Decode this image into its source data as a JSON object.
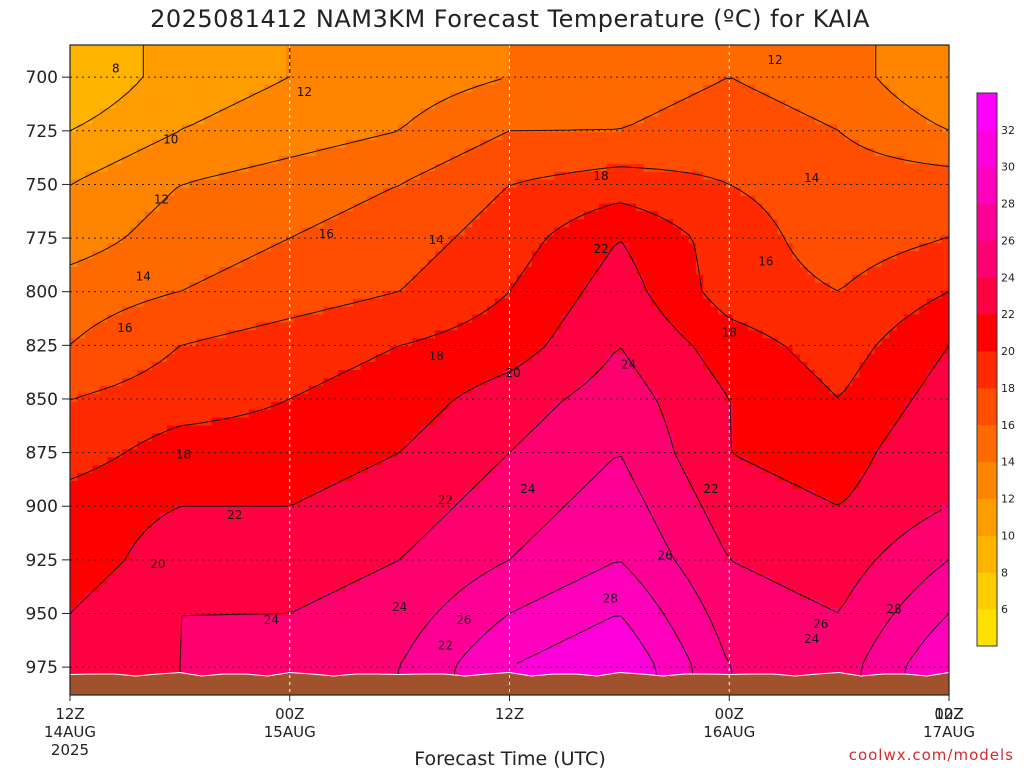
{
  "chart_data": {
    "type": "heatmap",
    "title": "2025081412 NAM3KM Forecast Temperature (ºC) for KAIA",
    "xlabel": "Forecast Time (UTC)",
    "ylabel": "",
    "x_hours": [
      0,
      6,
      12,
      18,
      24,
      30,
      36,
      42,
      48
    ],
    "y_levels": [
      700,
      725,
      750,
      775,
      800,
      825,
      850,
      875,
      900,
      925,
      950,
      975
    ],
    "ylim": [
      988,
      685
    ],
    "xlim": [
      0,
      48
    ],
    "y_ticks": [
      "700",
      "725",
      "750",
      "775",
      "800",
      "825",
      "850",
      "875",
      "900",
      "925",
      "950",
      "975"
    ],
    "x_ticks": [
      {
        "line1": "12Z",
        "line2": "14AUG",
        "line3": "2025"
      },
      {
        "line1": "00Z",
        "line2": "15AUG",
        "line3": ""
      },
      {
        "line1": "12Z",
        "line2": "",
        "line3": ""
      },
      {
        "line1": "00Z",
        "line2": "16AUG",
        "line3": ""
      },
      {
        "line1": "12Z",
        "line2": "",
        "line3": ""
      },
      {
        "line1": "00Z",
        "line2": "17AUG",
        "line3": ""
      }
    ],
    "x_tick_hours": [
      0,
      12,
      24,
      36,
      48,
      60
    ],
    "temperature_grid": [
      [
        8,
        11,
        12,
        13,
        14,
        15,
        16,
        15,
        12
      ],
      [
        10,
        12,
        13,
        14,
        16,
        16,
        17,
        16,
        14
      ],
      [
        12,
        14,
        15,
        16,
        18,
        19,
        18,
        17,
        17
      ],
      [
        13,
        15,
        16,
        17,
        19,
        22,
        19,
        17,
        18
      ],
      [
        15,
        16,
        17,
        18,
        20,
        23,
        19,
        18,
        20
      ],
      [
        16,
        18,
        19,
        20,
        21,
        24,
        21,
        19,
        22
      ],
      [
        18,
        19,
        20,
        21,
        23,
        25,
        22,
        20,
        23
      ],
      [
        19,
        21,
        21,
        22,
        24,
        26,
        22,
        21,
        24
      ],
      [
        21,
        22,
        22,
        23,
        25,
        27,
        23,
        22,
        24
      ],
      [
        21,
        23,
        23,
        24,
        26,
        28,
        24,
        23,
        26
      ],
      [
        22,
        24,
        24,
        25,
        28,
        30,
        25,
        24,
        28
      ],
      [
        23,
        24,
        25,
        26,
        30,
        32,
        26,
        25,
        30
      ]
    ],
    "contour_interval": 2,
    "contour_labels": [
      {
        "value": "8",
        "hour": 2.5,
        "level": 696
      },
      {
        "value": "12",
        "hour": 12.8,
        "level": 707
      },
      {
        "value": "12",
        "hour": 38.5,
        "level": 692
      },
      {
        "value": "10",
        "hour": 5.5,
        "level": 729
      },
      {
        "value": "14",
        "hour": 40.5,
        "level": 747
      },
      {
        "value": "12",
        "hour": 5.0,
        "level": 757
      },
      {
        "value": "16",
        "hour": 14.0,
        "level": 773
      },
      {
        "value": "14",
        "hour": 20.0,
        "level": 776
      },
      {
        "value": "18",
        "hour": 29.0,
        "level": 746
      },
      {
        "value": "16",
        "hour": 38.0,
        "level": 786
      },
      {
        "value": "14",
        "hour": 4.0,
        "level": 793
      },
      {
        "value": "22",
        "hour": 29.0,
        "level": 780
      },
      {
        "value": "16",
        "hour": 3.0,
        "level": 817
      },
      {
        "value": "18",
        "hour": 20.0,
        "level": 830
      },
      {
        "value": "18",
        "hour": 36.0,
        "level": 819
      },
      {
        "value": "20",
        "hour": 24.2,
        "level": 838
      },
      {
        "value": "24",
        "hour": 30.5,
        "level": 834
      },
      {
        "value": "18",
        "hour": 6.2,
        "level": 876
      },
      {
        "value": "24",
        "hour": 25.0,
        "level": 892
      },
      {
        "value": "22",
        "hour": 35.0,
        "level": 892
      },
      {
        "value": "22",
        "hour": 20.5,
        "level": 897
      },
      {
        "value": "22",
        "hour": 9.0,
        "level": 904
      },
      {
        "value": "26",
        "hour": 32.5,
        "level": 923
      },
      {
        "value": "20",
        "hour": 4.8,
        "level": 927
      },
      {
        "value": "28",
        "hour": 29.5,
        "level": 943
      },
      {
        "value": "28",
        "hour": 45.0,
        "level": 948
      },
      {
        "value": "24",
        "hour": 18.0,
        "level": 947
      },
      {
        "value": "24",
        "hour": 11.0,
        "level": 953
      },
      {
        "value": "26",
        "hour": 21.5,
        "level": 953
      },
      {
        "value": "26",
        "hour": 41.0,
        "level": 955
      },
      {
        "value": "24",
        "hour": 40.5,
        "level": 962
      },
      {
        "value": "22",
        "hour": 20.5,
        "level": 965
      }
    ],
    "colorbar": {
      "ticks": [
        "6",
        "8",
        "10",
        "12",
        "14",
        "16",
        "18",
        "20",
        "22",
        "24",
        "26",
        "28",
        "30",
        "32"
      ],
      "range": [
        4,
        34
      ],
      "colors": [
        "#ffe000",
        "#ffcc00",
        "#ffb400",
        "#ff9c00",
        "#ff8400",
        "#ff6a00",
        "#ff4e00",
        "#ff2a00",
        "#ff0000",
        "#ff0040",
        "#ff0070",
        "#ff0096",
        "#ff00bc",
        "#ff00dc",
        "#ff00ff"
      ]
    },
    "terrain_color": "#a0522d",
    "grid": true,
    "legend": "colorbar-right"
  },
  "credit": "coolwx.com/models"
}
